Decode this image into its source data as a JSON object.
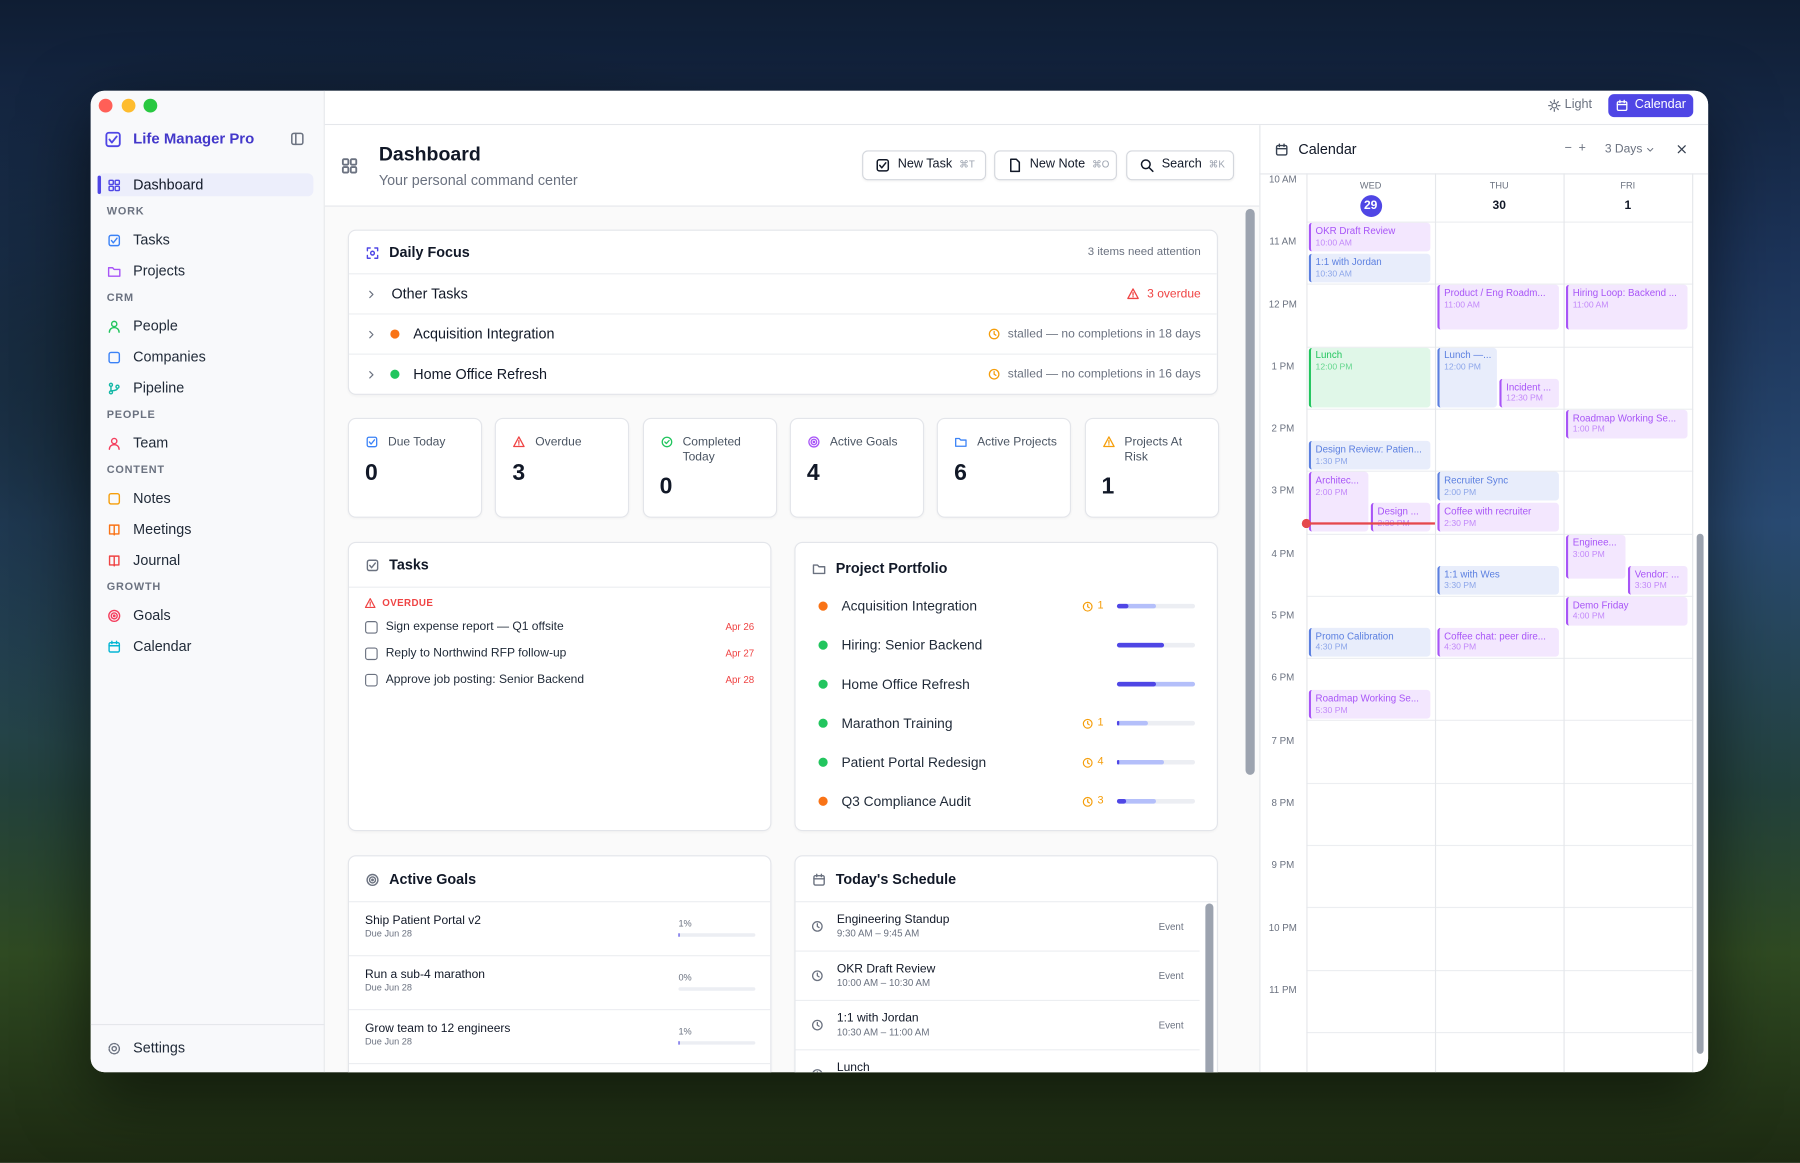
{
  "app": {
    "name": "Life Manager Pro",
    "theme": "Light",
    "calendar_button": "Calendar"
  },
  "sidebar": {
    "primary": {
      "label": "Dashboard",
      "color": "#4f46e5"
    },
    "sections": [
      {
        "title": "WORK",
        "items": [
          {
            "label": "Tasks",
            "color": "#3b82f6"
          },
          {
            "label": "Projects",
            "color": "#a855f7"
          }
        ]
      },
      {
        "title": "CRM",
        "items": [
          {
            "label": "People",
            "color": "#22c55e"
          },
          {
            "label": "Companies",
            "color": "#3b82f6"
          },
          {
            "label": "Pipeline",
            "color": "#14b8a6"
          }
        ]
      },
      {
        "title": "PEOPLE",
        "items": [
          {
            "label": "Team",
            "color": "#f43f5e"
          }
        ]
      },
      {
        "title": "CONTENT",
        "items": [
          {
            "label": "Notes",
            "color": "#f59e0b"
          },
          {
            "label": "Meetings",
            "color": "#f97316"
          },
          {
            "label": "Journal",
            "color": "#ef4444"
          }
        ]
      },
      {
        "title": "GROWTH",
        "items": [
          {
            "label": "Goals",
            "color": "#f43f5e"
          },
          {
            "label": "Calendar",
            "color": "#06b6d4"
          }
        ]
      }
    ],
    "settings": "Settings"
  },
  "header": {
    "title": "Dashboard",
    "subtitle": "Your personal command center",
    "actions": [
      {
        "label": "New Task",
        "shortcut": "⌘T"
      },
      {
        "label": "New Note",
        "shortcut": "⌘O"
      },
      {
        "label": "Search",
        "shortcut": "⌘K"
      }
    ]
  },
  "daily_focus": {
    "title": "Daily Focus",
    "summary": "3 items need attention",
    "rows": [
      {
        "label": "Other Tasks",
        "status": "3 overdue",
        "status_color": "#ef4444",
        "icon_color": "#ef4444"
      },
      {
        "label": "Acquisition Integration",
        "dot": "#f97316",
        "status": "stalled — no completions in 18 days",
        "status_color": "#6b7280",
        "icon_color": "#f59e0b"
      },
      {
        "label": "Home Office Refresh",
        "dot": "#22c55e",
        "status": "stalled — no completions in 16 days",
        "status_color": "#6b7280",
        "icon_color": "#f59e0b"
      }
    ]
  },
  "stats": [
    {
      "label": "Due Today",
      "value": 0,
      "color": "#3b82f6"
    },
    {
      "label": "Overdue",
      "value": 3,
      "color": "#ef4444"
    },
    {
      "label": "Completed Today",
      "value": 0,
      "color": "#22c55e"
    },
    {
      "label": "Active Goals",
      "value": 4,
      "color": "#a855f7"
    },
    {
      "label": "Active Projects",
      "value": 6,
      "color": "#3b82f6"
    },
    {
      "label": "Projects At Risk",
      "value": 1,
      "color": "#f59e0b"
    }
  ],
  "tasks": {
    "title": "Tasks",
    "group": "OVERDUE",
    "items": [
      {
        "text": "Sign expense report — Q1 offsite",
        "due": "Apr 26"
      },
      {
        "text": "Reply to Northwind RFP follow-up",
        "due": "Apr 27"
      },
      {
        "text": "Approve job posting: Senior Backend",
        "due": "Apr 28"
      }
    ]
  },
  "portfolio": {
    "title": "Project Portfolio",
    "items": [
      {
        "name": "Acquisition Integration",
        "color": "#f97316",
        "alerts": 1,
        "done": 15,
        "active": 50
      },
      {
        "name": "Hiring: Senior Backend",
        "color": "#22c55e",
        "alerts": null,
        "done": 60,
        "active": 60
      },
      {
        "name": "Home Office Refresh",
        "color": "#22c55e",
        "alerts": null,
        "done": 50,
        "active": 100
      },
      {
        "name": "Marathon Training",
        "color": "#22c55e",
        "alerts": 1,
        "done": 3,
        "active": 40
      },
      {
        "name": "Patient Portal Redesign",
        "color": "#22c55e",
        "alerts": 4,
        "done": 3,
        "active": 60
      },
      {
        "name": "Q3 Compliance Audit",
        "color": "#f97316",
        "alerts": 3,
        "done": 12,
        "active": 50
      }
    ]
  },
  "goals": {
    "title": "Active Goals",
    "items": [
      {
        "name": "Ship Patient Portal v2",
        "due": "Due Jun 28",
        "progress": 1,
        "progress_label": "1%"
      },
      {
        "name": "Run a sub-4 marathon",
        "due": "Due Jun 28",
        "progress": 0,
        "progress_label": "0%"
      },
      {
        "name": "Grow team to 12 engineers",
        "due": "Due Jun 28",
        "progress": 1,
        "progress_label": "1%"
      }
    ]
  },
  "schedule": {
    "title": "Today's Schedule",
    "items": [
      {
        "name": "Engineering Standup",
        "time": "9:30 AM – 9:45 AM",
        "kind": "Event"
      },
      {
        "name": "OKR Draft Review",
        "time": "10:00 AM – 10:30 AM",
        "kind": "Event"
      },
      {
        "name": "1:1 with Jordan",
        "time": "10:30 AM – 11:00 AM",
        "kind": "Event"
      },
      {
        "name": "Lunch"
      }
    ]
  },
  "calendar": {
    "title": "Calendar",
    "zoom": [
      "−",
      "+"
    ],
    "range": "3 Days",
    "hours": [
      "10 AM",
      "11 AM",
      "12 PM",
      "1 PM",
      "2 PM",
      "3 PM",
      "4 PM",
      "5 PM",
      "6 PM",
      "7 PM",
      "8 PM",
      "9 PM",
      "10 PM",
      "11 PM"
    ],
    "days": [
      {
        "weekday": "WED",
        "date": 29,
        "today": true
      },
      {
        "weekday": "THU",
        "date": 30,
        "today": false
      },
      {
        "weekday": "FRI",
        "date": 1,
        "today": false
      }
    ],
    "now": 14.85,
    "events": [
      {
        "title": "OKR Draft Review",
        "time": "10:00 AM",
        "day": 0,
        "start": 10,
        "end": 10.5,
        "color": "#a855f7"
      },
      {
        "title": "1:1 with Jordan",
        "time": "10:30 AM",
        "day": 0,
        "start": 10.5,
        "end": 11,
        "color": "#5b7fe0"
      },
      {
        "title": "Lunch",
        "time": "12:00 PM",
        "day": 0,
        "start": 12,
        "end": 13,
        "color": "#22c55e"
      },
      {
        "title": "Design Review: Patien...",
        "time": "1:30 PM",
        "day": 0,
        "start": 13.5,
        "end": 14,
        "color": "#5b7fe0"
      },
      {
        "title": "Architec...",
        "time": "2:00 PM",
        "day": 0,
        "start": 14,
        "end": 15,
        "color": "#a855f7"
      },
      {
        "title": "Design ...",
        "time": "2:30 PM",
        "day": 0,
        "start": 14.5,
        "end": 15,
        "color": "#a855f7"
      },
      {
        "title": "Promo Calibration",
        "time": "4:30 PM",
        "day": 0,
        "start": 16.5,
        "end": 17,
        "color": "#5b7fe0"
      },
      {
        "title": "Roadmap Working Se...",
        "time": "5:30 PM",
        "day": 0,
        "start": 17.5,
        "end": 18,
        "color": "#a855f7"
      },
      {
        "title": "Product / Eng Roadm...",
        "time": "11:00 AM",
        "day": 1,
        "start": 11,
        "end": 11.75,
        "color": "#a855f7"
      },
      {
        "title": "Lunch —...",
        "time": "12:00 PM",
        "day": 1,
        "start": 12,
        "end": 13,
        "color": "#5b7fe0"
      },
      {
        "title": "Incident ...",
        "time": "12:30 PM",
        "day": 1,
        "start": 12.5,
        "end": 13,
        "color": "#a855f7"
      },
      {
        "title": "Recruiter Sync",
        "time": "2:00 PM",
        "day": 1,
        "start": 14,
        "end": 14.5,
        "color": "#5b7fe0"
      },
      {
        "title": "Coffee with recruiter",
        "time": "2:30 PM",
        "day": 1,
        "start": 14.5,
        "end": 15,
        "color": "#a855f7"
      },
      {
        "title": "1:1 with Wes",
        "time": "3:30 PM",
        "day": 1,
        "start": 15.5,
        "end": 16,
        "color": "#5b7fe0"
      },
      {
        "title": "Coffee chat: peer dire...",
        "time": "4:30 PM",
        "day": 1,
        "start": 16.5,
        "end": 17,
        "color": "#a855f7"
      },
      {
        "title": "Hiring Loop: Backend ...",
        "time": "11:00 AM",
        "day": 2,
        "start": 11,
        "end": 11.75,
        "color": "#a855f7"
      },
      {
        "title": "Roadmap Working Se...",
        "time": "1:00 PM",
        "day": 2,
        "start": 13,
        "end": 13.5,
        "color": "#a855f7"
      },
      {
        "title": "Enginee...",
        "time": "3:00 PM",
        "day": 2,
        "start": 15,
        "end": 15.75,
        "color": "#a855f7"
      },
      {
        "title": "Vendor: ...",
        "time": "3:30 PM",
        "day": 2,
        "start": 15.5,
        "end": 16,
        "color": "#a855f7"
      },
      {
        "title": "Demo Friday",
        "time": "4:00 PM",
        "day": 2,
        "start": 16,
        "end": 16.5,
        "color": "#a855f7"
      }
    ]
  }
}
